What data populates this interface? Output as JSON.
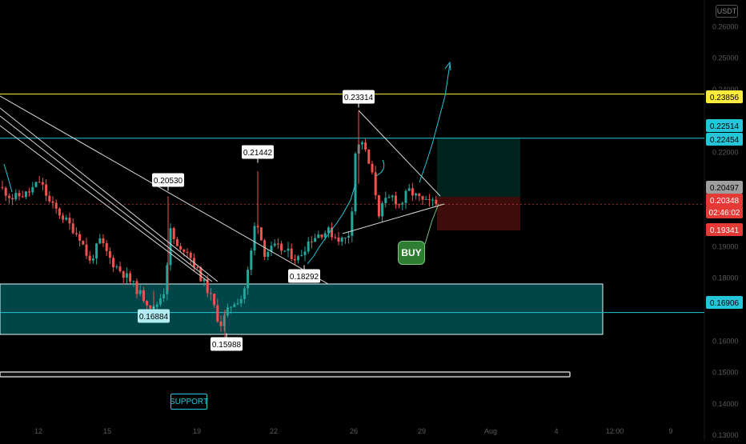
{
  "currency": "USDT",
  "chart_data": {
    "type": "candlestick",
    "y_axis": {
      "ticks": [
        "0.26000",
        "0.25000",
        "0.24000",
        "0.22000",
        "0.20000",
        "0.19000",
        "0.18000",
        "0.16000",
        "0.15000",
        "0.14000",
        "0.13000"
      ],
      "tick_values": [
        0.26,
        0.25,
        0.24,
        0.22,
        0.2,
        0.19,
        0.18,
        0.16,
        0.15,
        0.14,
        0.13
      ],
      "ylim": [
        0.1285,
        0.2685
      ]
    },
    "x_axis": {
      "ticks": [
        "12",
        "15",
        "19",
        "22",
        "26",
        "29",
        "Aug",
        "4",
        "12:00",
        "9"
      ]
    },
    "price_tags": [
      {
        "text": "0.23856",
        "value": 0.23856,
        "bg": "#ffeb3b",
        "fg": "#000000"
      },
      {
        "text": "0.22514",
        "value": 0.22514,
        "bg": "#26c6da",
        "fg": "#000000"
      },
      {
        "text": "0.22454",
        "value": 0.22454,
        "bg": "#26c6da",
        "fg": "#000000"
      },
      {
        "text": "0.20497",
        "value": 0.20497,
        "bg": "#9e9e9e",
        "fg": "#000000"
      },
      {
        "text": "0.20348",
        "value": 0.20348,
        "bg": "#e53935",
        "fg": "#ffffff"
      },
      {
        "text": "02:46:02",
        "value": 0.20048,
        "bg": "#e53935",
        "fg": "#ffffff"
      },
      {
        "text": "0.19341",
        "value": 0.19341,
        "bg": "#e53935",
        "fg": "#ffffff"
      },
      {
        "text": "0.16906",
        "value": 0.16906,
        "bg": "#26c6da",
        "fg": "#000000"
      }
    ],
    "annotations": [
      {
        "text": "0.23314",
        "value": 0.23314
      },
      {
        "text": "0.21442",
        "value": 0.21442
      },
      {
        "text": "0.20530",
        "value": 0.2053
      },
      {
        "text": "0.18292",
        "value": 0.18292
      },
      {
        "text": "0.16884",
        "value": 0.16884
      },
      {
        "text": "0.15988",
        "value": 0.15988
      }
    ],
    "support_label": "SUPPORT",
    "buy_label": "BUY",
    "colors": {
      "up": "#26a69a",
      "down": "#ef5350",
      "resistance": "#ffeb3b",
      "level": "#26c6da",
      "zone": "#006064"
    }
  }
}
